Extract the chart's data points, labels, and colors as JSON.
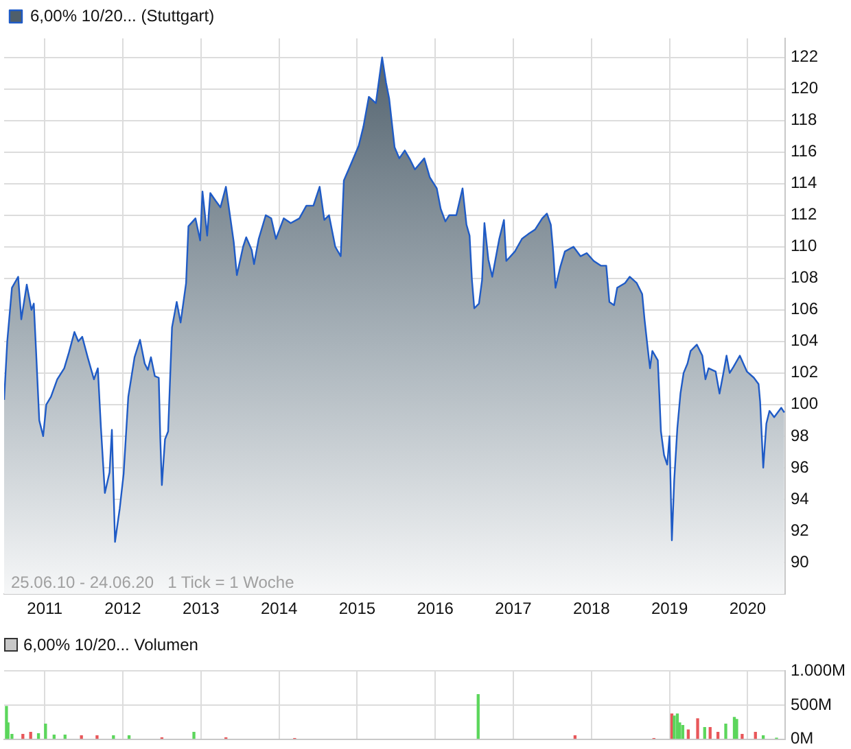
{
  "chart_data": [
    {
      "type": "area",
      "legend": "top left",
      "grid": true,
      "xlim": [
        2010.48,
        2020.48
      ],
      "xticks": [
        2011,
        2012,
        2013,
        2014,
        2015,
        2016,
        2017,
        2018,
        2019,
        2020
      ],
      "ylim": [
        88,
        123.2
      ],
      "yticks": [
        90,
        92,
        94,
        96,
        98,
        100,
        102,
        104,
        106,
        108,
        110,
        112,
        114,
        116,
        118,
        120,
        122
      ],
      "annotations": [
        "25.06.10 - 24.06.20   1 Tick = 1 Woche"
      ],
      "x": [
        2010.48,
        2010.52,
        2010.58,
        2010.66,
        2010.7,
        2010.77,
        2010.83,
        2010.86,
        2010.89,
        2010.93,
        2010.98,
        2011.02,
        2011.08,
        2011.16,
        2011.25,
        2011.31,
        2011.38,
        2011.43,
        2011.48,
        2011.55,
        2011.63,
        2011.68,
        2011.72,
        2011.77,
        2011.83,
        2011.86,
        2011.9,
        2011.96,
        2012.01,
        2012.07,
        2012.15,
        2012.22,
        2012.28,
        2012.32,
        2012.36,
        2012.41,
        2012.46,
        2012.48,
        2012.5,
        2012.54,
        2012.58,
        2012.63,
        2012.69,
        2012.74,
        2012.81,
        2012.84,
        2012.93,
        2012.99,
        2013.02,
        2013.08,
        2013.12,
        2013.19,
        2013.25,
        2013.32,
        2013.38,
        2013.42,
        2013.46,
        2013.54,
        2013.58,
        2013.65,
        2013.68,
        2013.74,
        2013.83,
        2013.9,
        2013.96,
        2014.06,
        2014.15,
        2014.26,
        2014.35,
        2014.44,
        2014.52,
        2014.58,
        2014.64,
        2014.72,
        2014.79,
        2014.83,
        2014.9,
        2015.02,
        2015.08,
        2015.15,
        2015.24,
        2015.32,
        2015.37,
        2015.41,
        2015.48,
        2015.54,
        2015.61,
        2015.68,
        2015.74,
        2015.86,
        2015.93,
        2016.02,
        2016.07,
        2016.13,
        2016.18,
        2016.27,
        2016.35,
        2016.4,
        2016.44,
        2016.47,
        2016.5,
        2016.56,
        2016.6,
        2016.63,
        2016.68,
        2016.73,
        2016.82,
        2016.88,
        2016.91,
        2017.02,
        2017.11,
        2017.19,
        2017.28,
        2017.37,
        2017.43,
        2017.48,
        2017.51,
        2017.54,
        2017.6,
        2017.66,
        2017.77,
        2017.86,
        2017.94,
        2018.03,
        2018.12,
        2018.19,
        2018.23,
        2018.29,
        2018.33,
        2018.43,
        2018.49,
        2018.58,
        2018.65,
        2018.68,
        2018.72,
        2018.75,
        2018.78,
        2018.85,
        2018.87,
        2018.89,
        2018.93,
        2018.97,
        2019,
        2019.03,
        2019.06,
        2019.1,
        2019.14,
        2019.18,
        2019.23,
        2019.27,
        2019.35,
        2019.42,
        2019.46,
        2019.5,
        2019.59,
        2019.64,
        2019.69,
        2019.73,
        2019.77,
        2019.82,
        2019.9,
        2019.99,
        2020.08,
        2020.14,
        2020.16,
        2020.2,
        2020.24,
        2020.28,
        2020.34,
        2020.43,
        2020.47
      ],
      "series": [
        {
          "name": "6,00% 10/20... (Stuttgart)",
          "type": "area",
          "color": "#1f5bc6",
          "values": [
            100.3,
            104,
            107.4,
            108.1,
            105.4,
            107.6,
            106,
            106.4,
            103.3,
            99,
            98,
            100,
            100.5,
            101.6,
            102.3,
            103.3,
            104.6,
            104,
            104.3,
            103,
            101.6,
            102.3,
            98.5,
            94.4,
            95.7,
            98.4,
            91.3,
            93.4,
            95.6,
            100.5,
            103,
            104.1,
            102.6,
            102.2,
            103,
            101.8,
            101.7,
            97.8,
            94.9,
            97.8,
            98.3,
            104.9,
            106.5,
            105.2,
            107.7,
            111.3,
            111.8,
            110.4,
            113.5,
            110.7,
            113.4,
            112.9,
            112.5,
            113.8,
            111.7,
            110.3,
            108.2,
            110,
            110.6,
            109.8,
            108.9,
            110.5,
            112,
            111.8,
            110.5,
            111.8,
            111.5,
            111.8,
            112.6,
            112.6,
            113.8,
            111.7,
            112,
            110,
            109.4,
            114.2,
            115,
            116.4,
            117.6,
            119.5,
            119.1,
            122,
            120.4,
            119.4,
            116.3,
            115.6,
            116.1,
            115.5,
            114.9,
            115.6,
            114.4,
            113.7,
            112.4,
            111.6,
            112,
            112,
            113.7,
            111.4,
            110.7,
            107.9,
            106.1,
            106.4,
            107.9,
            111.5,
            109.2,
            108.1,
            110.5,
            111.7,
            109.1,
            109.7,
            110.5,
            110.8,
            111.1,
            111.8,
            112.1,
            111.4,
            109.7,
            107.4,
            108.7,
            109.7,
            110,
            109.4,
            109.6,
            109.1,
            108.8,
            108.8,
            106.5,
            106.3,
            107.4,
            107.7,
            108.1,
            107.7,
            107,
            105.4,
            103.6,
            102.3,
            103.4,
            102.8,
            100.6,
            98.3,
            96.8,
            96.2,
            98,
            91.4,
            95.2,
            98.5,
            100.7,
            102,
            102.6,
            103.4,
            103.8,
            103.1,
            101.6,
            102.3,
            102.1,
            100.7,
            102,
            103.1,
            102,
            102.4,
            103.1,
            102.1,
            101.7,
            101.3,
            100.2,
            96,
            98.8,
            99.6,
            99.2,
            99.8,
            99.5
          ]
        }
      ]
    },
    {
      "type": "bar",
      "title": "6,00% 10/20... Volumen",
      "grid": true,
      "tick_labels": "y",
      "xlim": [
        2010.48,
        2020.48
      ],
      "xticks": [
        {
          "value": 2011,
          "label": null
        },
        {
          "value": 2012,
          "label": null
        },
        {
          "value": 2013,
          "label": null
        },
        {
          "value": 2014,
          "label": null
        },
        {
          "value": 2015,
          "label": null
        },
        {
          "value": 2016,
          "label": null
        },
        {
          "value": 2017,
          "label": null
        },
        {
          "value": 2018,
          "label": null
        },
        {
          "value": 2019,
          "label": null
        },
        {
          "value": 2020,
          "label": null
        }
      ],
      "ylim": [
        0,
        1000
      ],
      "yticks": [
        {
          "value": 0,
          "label": "0M"
        },
        {
          "value": 500,
          "label": "500M"
        },
        {
          "value": 1000,
          "label": "1.000M"
        }
      ],
      "x": [
        2010.51,
        2010.53,
        2010.58,
        2010.72,
        2010.82,
        2010.92,
        2011.01,
        2011.12,
        2011.26,
        2011.47,
        2011.67,
        2011.88,
        2012.08,
        2012.5,
        2012.91,
        2013.32,
        2014.2,
        2016.55,
        2017.79,
        2018.8,
        2019.03,
        2019.06,
        2019.1,
        2019.13,
        2019.17,
        2019.24,
        2019.36,
        2019.45,
        2019.52,
        2019.62,
        2019.72,
        2019.83,
        2019.86,
        2019.93,
        2020.1,
        2020.2,
        2020.37
      ],
      "values": [
        480,
        240,
        70,
        70,
        100,
        80,
        220,
        60,
        60,
        50,
        50,
        50,
        50,
        20,
        100,
        20,
        10,
        655,
        50,
        10,
        370,
        340,
        370,
        240,
        200,
        135,
        300,
        170,
        170,
        100,
        220,
        320,
        290,
        70,
        100,
        50,
        15
      ],
      "colors": [
        "#5cd65c",
        "#5cd65c",
        "#5cd65c",
        "#e8575a",
        "#e8575a",
        "#5cd65c",
        "#5cd65c",
        "#5cd65c",
        "#5cd65c",
        "#e8575a",
        "#e8575a",
        "#5cd65c",
        "#5cd65c",
        "#e8575a",
        "#5cd65c",
        "#e8575a",
        "#e8575a",
        "#5cd65c",
        "#e8575a",
        "#e8575a",
        "#e8575a",
        "#5cd65c",
        "#5cd65c",
        "#5cd65c",
        "#5cd65c",
        "#e8575a",
        "#e8575a",
        "#5cd65c",
        "#e8575a",
        "#e8575a",
        "#5cd65c",
        "#5cd65c",
        "#5cd65c",
        "#e8575a",
        "#e8575a",
        "#5cd65c",
        "#5cd65c"
      ]
    }
  ]
}
